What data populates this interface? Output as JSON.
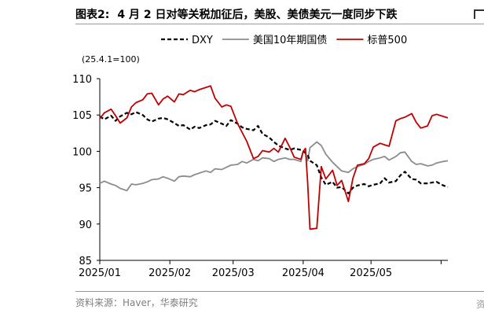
{
  "header": {
    "figure_number": "图表2:",
    "title": "4 月 2 日对等关税加征后，美股、美债美元一度同步下跌"
  },
  "source": "资料来源：Haver，华泰研究",
  "chart_data": {
    "type": "line",
    "index_note": "(25.4.1=100)",
    "xlabel": "",
    "ylabel": "",
    "ylim": [
      85,
      110
    ],
    "yticks": [
      85,
      90,
      95,
      100,
      105,
      110
    ],
    "xlim": [
      "2025-01-01",
      "2025-06-04"
    ],
    "xticks": [
      {
        "date": "2025-01-01",
        "label": "2025/01"
      },
      {
        "date": "2025-02-01",
        "label": "2025/02"
      },
      {
        "date": "2025-03-01",
        "label": "2025/03"
      },
      {
        "date": "2025-04-01",
        "label": "2025/04"
      },
      {
        "date": "2025-05-01",
        "label": "2025/05"
      },
      {
        "date": "2025-06-01",
        "label": ""
      }
    ],
    "grid": false,
    "legend_position": "top",
    "series": [
      {
        "name": "DXY",
        "color": "#000000",
        "style": "dashed",
        "x": [
          "2025-01-01",
          "2025-01-03",
          "2025-01-06",
          "2025-01-08",
          "2025-01-10",
          "2025-01-13",
          "2025-01-15",
          "2025-01-17",
          "2025-01-20",
          "2025-01-22",
          "2025-01-24",
          "2025-01-27",
          "2025-01-29",
          "2025-01-31",
          "2025-02-03",
          "2025-02-05",
          "2025-02-07",
          "2025-02-10",
          "2025-02-12",
          "2025-02-14",
          "2025-02-17",
          "2025-02-19",
          "2025-02-21",
          "2025-02-24",
          "2025-02-26",
          "2025-02-28",
          "2025-03-03",
          "2025-03-05",
          "2025-03-07",
          "2025-03-10",
          "2025-03-12",
          "2025-03-14",
          "2025-03-17",
          "2025-03-19",
          "2025-03-21",
          "2025-03-24",
          "2025-03-26",
          "2025-03-28",
          "2025-03-31",
          "2025-04-01",
          "2025-04-02",
          "2025-04-03",
          "2025-04-04",
          "2025-04-07",
          "2025-04-09",
          "2025-04-11",
          "2025-04-14",
          "2025-04-16",
          "2025-04-18",
          "2025-04-21",
          "2025-04-23",
          "2025-04-25",
          "2025-04-28",
          "2025-04-30",
          "2025-05-02",
          "2025-05-05",
          "2025-05-07",
          "2025-05-09",
          "2025-05-12",
          "2025-05-14",
          "2025-05-16",
          "2025-05-19",
          "2025-05-21",
          "2025-05-23",
          "2025-05-26",
          "2025-05-28",
          "2025-05-30",
          "2025-06-02",
          "2025-06-04"
        ],
        "y": [
          104.8,
          104.4,
          104.9,
          104.2,
          104.8,
          105.3,
          105.1,
          105.4,
          105.0,
          104.4,
          104.1,
          104.5,
          104.6,
          104.4,
          103.9,
          103.5,
          103.6,
          103.0,
          103.4,
          103.2,
          103.6,
          103.7,
          104.2,
          103.8,
          103.5,
          104.3,
          103.8,
          103.3,
          103.1,
          102.9,
          103.5,
          102.4,
          101.9,
          101.3,
          100.8,
          100.4,
          100.2,
          100.4,
          100.2,
          100.0,
          99.8,
          99.5,
          98.7,
          98.1,
          96.4,
          95.4,
          95.8,
          95.0,
          95.1,
          94.2,
          95.0,
          95.3,
          95.5,
          95.2,
          95.4,
          95.6,
          96.3,
          95.7,
          95.9,
          96.7,
          97.2,
          96.2,
          96.1,
          95.6,
          95.6,
          95.7,
          95.8,
          95.3,
          95.1
        ]
      },
      {
        "name": "美国10年期国债",
        "color": "#8c8c8c",
        "style": "solid",
        "x": [
          "2025-01-01",
          "2025-01-03",
          "2025-01-06",
          "2025-01-08",
          "2025-01-10",
          "2025-01-13",
          "2025-01-15",
          "2025-01-17",
          "2025-01-20",
          "2025-01-22",
          "2025-01-24",
          "2025-01-27",
          "2025-01-29",
          "2025-01-31",
          "2025-02-03",
          "2025-02-05",
          "2025-02-07",
          "2025-02-10",
          "2025-02-12",
          "2025-02-14",
          "2025-02-17",
          "2025-02-19",
          "2025-02-21",
          "2025-02-24",
          "2025-02-26",
          "2025-02-28",
          "2025-03-03",
          "2025-03-05",
          "2025-03-07",
          "2025-03-10",
          "2025-03-12",
          "2025-03-14",
          "2025-03-17",
          "2025-03-19",
          "2025-03-21",
          "2025-03-24",
          "2025-03-26",
          "2025-03-28",
          "2025-03-31",
          "2025-04-01",
          "2025-04-02",
          "2025-04-03",
          "2025-04-04",
          "2025-04-07",
          "2025-04-09",
          "2025-04-11",
          "2025-04-14",
          "2025-04-16",
          "2025-04-18",
          "2025-04-21",
          "2025-04-23",
          "2025-04-25",
          "2025-04-28",
          "2025-04-30",
          "2025-05-02",
          "2025-05-05",
          "2025-05-07",
          "2025-05-09",
          "2025-05-12",
          "2025-05-14",
          "2025-05-16",
          "2025-05-19",
          "2025-05-21",
          "2025-05-23",
          "2025-05-26",
          "2025-05-28",
          "2025-05-30",
          "2025-06-02",
          "2025-06-04"
        ],
        "y": [
          95.6,
          95.9,
          95.5,
          95.3,
          94.9,
          94.6,
          95.5,
          95.4,
          95.6,
          95.8,
          96.1,
          96.2,
          96.5,
          96.3,
          95.9,
          96.5,
          96.6,
          96.5,
          96.8,
          97.0,
          97.3,
          97.1,
          97.6,
          97.5,
          97.8,
          98.1,
          98.2,
          98.6,
          98.4,
          98.9,
          98.7,
          99.1,
          99.0,
          98.6,
          98.9,
          99.1,
          98.9,
          98.9,
          98.6,
          100.0,
          99.7,
          98.7,
          100.5,
          101.3,
          100.8,
          99.6,
          98.5,
          97.9,
          97.3,
          97.1,
          97.6,
          97.9,
          98.2,
          98.6,
          98.9,
          99.1,
          99.3,
          98.8,
          99.3,
          99.8,
          99.9,
          98.6,
          98.2,
          98.3,
          98.0,
          98.1,
          98.4,
          98.6,
          98.7
        ]
      },
      {
        "name": "标普500",
        "color": "#c00000",
        "style": "solid",
        "x": [
          "2025-01-01",
          "2025-01-03",
          "2025-01-06",
          "2025-01-08",
          "2025-01-10",
          "2025-01-13",
          "2025-01-15",
          "2025-01-17",
          "2025-01-20",
          "2025-01-22",
          "2025-01-24",
          "2025-01-27",
          "2025-01-29",
          "2025-01-31",
          "2025-02-03",
          "2025-02-05",
          "2025-02-07",
          "2025-02-10",
          "2025-02-12",
          "2025-02-14",
          "2025-02-17",
          "2025-02-19",
          "2025-02-21",
          "2025-02-24",
          "2025-02-26",
          "2025-02-28",
          "2025-03-03",
          "2025-03-05",
          "2025-03-07",
          "2025-03-10",
          "2025-03-12",
          "2025-03-14",
          "2025-03-17",
          "2025-03-19",
          "2025-03-21",
          "2025-03-24",
          "2025-03-26",
          "2025-03-28",
          "2025-03-31",
          "2025-04-01",
          "2025-04-02",
          "2025-04-03",
          "2025-04-04",
          "2025-04-07",
          "2025-04-09",
          "2025-04-11",
          "2025-04-14",
          "2025-04-16",
          "2025-04-18",
          "2025-04-21",
          "2025-04-23",
          "2025-04-25",
          "2025-04-28",
          "2025-04-30",
          "2025-05-02",
          "2025-05-05",
          "2025-05-07",
          "2025-05-09",
          "2025-05-12",
          "2025-05-14",
          "2025-05-16",
          "2025-05-19",
          "2025-05-21",
          "2025-05-23",
          "2025-05-26",
          "2025-05-28",
          "2025-05-30",
          "2025-06-02",
          "2025-06-04"
        ],
        "y": [
          104.5,
          105.3,
          105.8,
          104.9,
          103.9,
          104.6,
          106.1,
          106.7,
          107.1,
          107.9,
          108.0,
          106.4,
          107.2,
          107.6,
          106.8,
          107.9,
          107.8,
          108.4,
          108.2,
          108.5,
          108.8,
          109.0,
          107.3,
          106.1,
          106.4,
          106.2,
          103.8,
          102.6,
          101.4,
          99.0,
          99.3,
          100.1,
          99.9,
          100.4,
          99.9,
          101.8,
          100.6,
          99.2,
          98.9,
          100.0,
          100.4,
          95.6,
          89.3,
          89.4,
          97.9,
          96.2,
          97.4,
          95.3,
          96.0,
          93.1,
          96.3,
          98.1,
          98.3,
          99.0,
          100.6,
          101.1,
          100.9,
          100.7,
          104.2,
          104.5,
          104.7,
          105.2,
          104.0,
          103.2,
          103.5,
          104.9,
          105.1,
          104.8,
          104.6
        ]
      }
    ]
  }
}
